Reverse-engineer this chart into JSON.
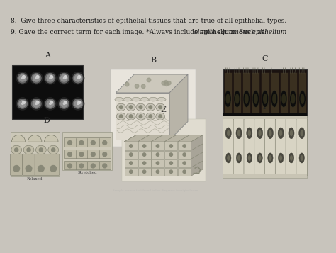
{
  "bg_color": "#c8c4bc",
  "page_color": "#d8d4cc",
  "q8": "8.  Give three characteristics of epithelial tissues that are true of all epithelial types.",
  "q9_normal": "9. Gave the correct term for each image. *Always include epithelium. Such as: ",
  "q9_italic": "simple squamous epithelium",
  "font_size": 6.5,
  "label_fontsize": 8
}
